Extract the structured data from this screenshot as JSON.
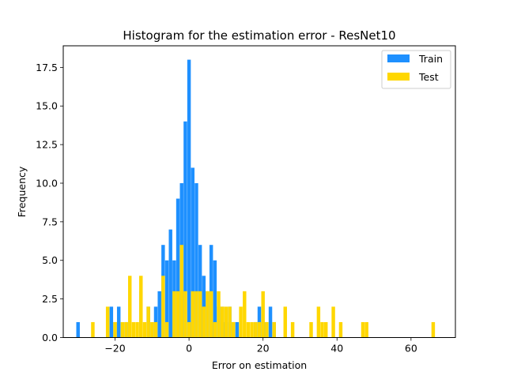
{
  "chart_data": {
    "type": "bar",
    "title": "Histogram for the estimation error - ResNet10",
    "xlabel": "Error on estimation",
    "ylabel": "Frequency",
    "xlim": [
      -34,
      72
    ],
    "ylim": [
      0,
      18.9
    ],
    "bin_width": 0.95,
    "xticks": [
      -20,
      0,
      20,
      40,
      60
    ],
    "xtick_labels": [
      "−20",
      "0",
      "20",
      "40",
      "60"
    ],
    "yticks": [
      0,
      2.5,
      5,
      7.5,
      10,
      12.5,
      15,
      17.5
    ],
    "ytick_labels": [
      "0.0",
      "2.5",
      "5.0",
      "7.5",
      "10.0",
      "12.5",
      "15.0",
      "17.5"
    ],
    "legend_position": "top-right",
    "grid": false,
    "series": [
      {
        "name": "Train",
        "color": "#1e90ff",
        "bins": [
          [
            -30,
            1
          ],
          [
            -21,
            2
          ],
          [
            -20,
            1
          ],
          [
            -19,
            2
          ],
          [
            -17,
            1
          ],
          [
            -13,
            3
          ],
          [
            -11,
            2
          ],
          [
            -9,
            2
          ],
          [
            -8,
            3
          ],
          [
            -7,
            6
          ],
          [
            -6,
            5
          ],
          [
            -5,
            7
          ],
          [
            -4,
            5
          ],
          [
            -3,
            9
          ],
          [
            -2,
            10
          ],
          [
            -1,
            14
          ],
          [
            0,
            18
          ],
          [
            1,
            11
          ],
          [
            2,
            10
          ],
          [
            3,
            6
          ],
          [
            4,
            4
          ],
          [
            5,
            3
          ],
          [
            6,
            6
          ],
          [
            7,
            5
          ],
          [
            8,
            2
          ],
          [
            9,
            2
          ],
          [
            10,
            1
          ],
          [
            11,
            2
          ],
          [
            12,
            1
          ],
          [
            13,
            1
          ],
          [
            18,
            1
          ],
          [
            19,
            2
          ],
          [
            20,
            1
          ],
          [
            21,
            1
          ],
          [
            22,
            2
          ],
          [
            23,
            1
          ]
        ]
      },
      {
        "name": "Test",
        "color": "#ffd700",
        "bins": [
          [
            -26,
            1
          ],
          [
            -22,
            2
          ],
          [
            -20,
            1
          ],
          [
            -18,
            1
          ],
          [
            -17,
            1
          ],
          [
            -16,
            4
          ],
          [
            -15,
            1
          ],
          [
            -14,
            1
          ],
          [
            -13,
            4
          ],
          [
            -12,
            1
          ],
          [
            -11,
            2
          ],
          [
            -10,
            1
          ],
          [
            -9,
            1
          ],
          [
            -7,
            4
          ],
          [
            -6,
            1
          ],
          [
            -4,
            3
          ],
          [
            -3,
            3
          ],
          [
            -2,
            6
          ],
          [
            -1,
            3
          ],
          [
            0,
            1
          ],
          [
            1,
            3
          ],
          [
            2,
            3
          ],
          [
            3,
            3
          ],
          [
            4,
            2
          ],
          [
            5,
            3
          ],
          [
            6,
            3
          ],
          [
            7,
            1
          ],
          [
            8,
            3
          ],
          [
            9,
            2
          ],
          [
            10,
            2
          ],
          [
            11,
            2
          ],
          [
            12,
            1
          ],
          [
            14,
            2
          ],
          [
            15,
            3
          ],
          [
            16,
            1
          ],
          [
            17,
            1
          ],
          [
            18,
            1
          ],
          [
            19,
            1
          ],
          [
            20,
            3
          ],
          [
            21,
            1
          ],
          [
            23,
            1
          ],
          [
            26,
            2
          ],
          [
            28,
            1
          ],
          [
            33,
            1
          ],
          [
            35,
            2
          ],
          [
            36,
            1
          ],
          [
            37,
            1
          ],
          [
            39,
            2
          ],
          [
            41,
            1
          ],
          [
            47,
            1
          ],
          [
            48,
            1
          ],
          [
            66,
            1
          ]
        ]
      }
    ]
  }
}
